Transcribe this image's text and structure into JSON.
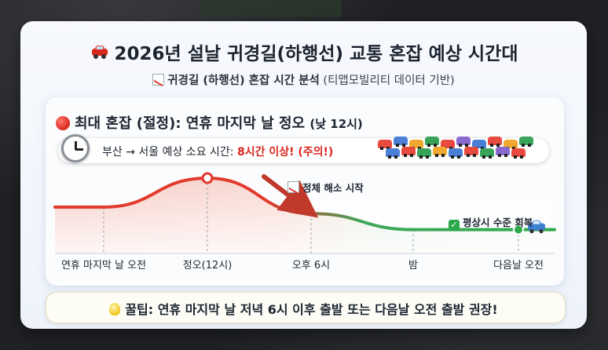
{
  "header": {
    "title": "2026년 설날 귀경길(하행선) 교통 혼잡 예상 시간대",
    "subtitle_main": "귀경길 (하행선) 혼잡 시간 분석",
    "subtitle_source": "(티맵모빌리티 데이터 기반)"
  },
  "peak": {
    "label": "최대 혼잡 (절정): 연휴 마지막 날 정오",
    "time": "(낮 12시)"
  },
  "banner": {
    "text": "부산 → 서울 예상 소요 시간:",
    "highlight": "8시간 이상! (주의!)"
  },
  "annotations": {
    "easing": "정체 해소 시작",
    "recovery": "평상시 수준 회복"
  },
  "chart_data": {
    "type": "area",
    "categories": [
      "연휴 마지막 날 오전",
      "정오(12시)",
      "오후 6시",
      "밤",
      "다음날 오전"
    ],
    "series": [
      {
        "values": [
          0.55,
          1.0,
          0.45,
          0.2,
          0.2
        ]
      }
    ],
    "xlabel": "",
    "ylabel": "",
    "grid": false,
    "colors": [
      "#e23a2c",
      "#2fa84a"
    ]
  },
  "tip": {
    "text": "꿀팁: 연휴 마지막 날 저녁 6시 이후 출발 또는 다음날 오전 출발 권장!"
  },
  "icons": [
    "car-icon",
    "trend-down-icon",
    "red-circle-icon",
    "clock-icon",
    "check-icon",
    "lightbulb-icon"
  ]
}
